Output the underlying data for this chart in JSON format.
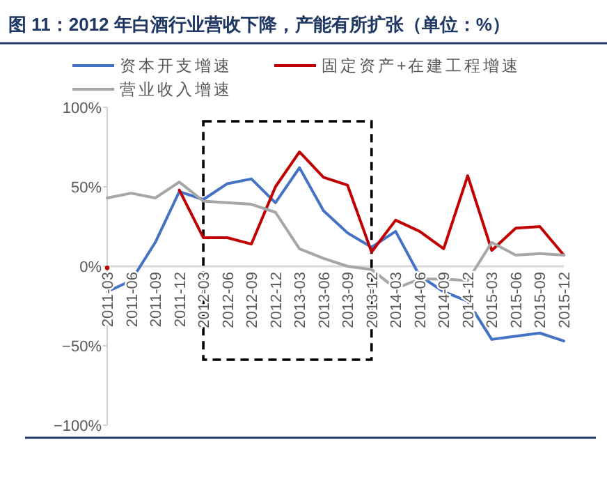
{
  "chart_data": {
    "type": "line",
    "title": "图 11：2012 年白酒行业营收下降，产能有所扩张（单位：%）",
    "categories": [
      "2011-03",
      "2011-06",
      "2011-09",
      "2011-12",
      "2012-03",
      "2012-06",
      "2012-09",
      "2012-12",
      "2013-03",
      "2013-06",
      "2013-09",
      "2013-12",
      "2014-03",
      "2014-06",
      "2014-09",
      "2014-12",
      "2015-03",
      "2015-06",
      "2015-09",
      "2015-12"
    ],
    "series": [
      {
        "name": "资本开支增速",
        "color": "#4472c4",
        "values": [
          -16,
          -9,
          15,
          47,
          42,
          52,
          55,
          40,
          62,
          35,
          21,
          12,
          22,
          -6,
          -16,
          -22,
          -46,
          -44,
          -42,
          -47
        ]
      },
      {
        "name": "固定资产+在建工程增速",
        "color": "#c00000",
        "values": [
          -1,
          null,
          null,
          48,
          18,
          18,
          14,
          50,
          72,
          56,
          51,
          9,
          29,
          22,
          11,
          57,
          10,
          24,
          25,
          7
        ]
      },
      {
        "name": "营业收入增速",
        "color": "#a6a6a6",
        "values": [
          43,
          46,
          43,
          53,
          41,
          40,
          39,
          34,
          11,
          5,
          0,
          -2,
          -14,
          -8,
          -8,
          -9,
          15,
          7,
          8,
          7
        ]
      }
    ],
    "ylim": [
      -100,
      100
    ],
    "yticks": [
      {
        "value": -100,
        "label": "−100%"
      },
      {
        "value": -50,
        "label": "−50%"
      },
      {
        "value": 0,
        "label": "0%"
      },
      {
        "value": 50,
        "label": "50%"
      },
      {
        "value": 100,
        "label": "100%"
      }
    ],
    "legend": "top",
    "grid": false,
    "marker": "none",
    "line_style": "solid"
  }
}
